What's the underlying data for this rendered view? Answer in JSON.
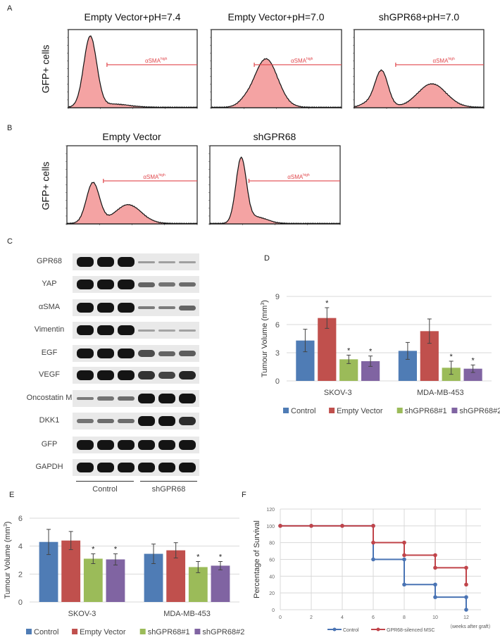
{
  "panels": {
    "A": "A",
    "B": "B",
    "C": "C",
    "D": "D",
    "E": "E",
    "F": "F"
  },
  "flow": {
    "ylabel": "GFP+ cells",
    "gate_label": "αSMA",
    "gate_sup": "high",
    "gate_color": "#e0474c",
    "fill_color": "#f4a3a3",
    "A_titles": [
      "Empty Vector+pH=7.4",
      "Empty Vector+pH=7.0",
      "shGPR68+pH=7.0"
    ],
    "B_titles": [
      "Empty Vector",
      "shGPR68"
    ]
  },
  "blot": {
    "proteins": [
      "GPR68",
      "YAP",
      "αSMA",
      "Vimentin",
      "EGF",
      "VEGF",
      "Oncostatin M",
      "DKK1",
      "GFP",
      "GAPDH"
    ],
    "groups": [
      "Control",
      "shGPR68"
    ]
  },
  "chart_data": [
    {
      "id": "D",
      "type": "bar",
      "ylabel": "Tumour Volume (mm",
      "ylabel_sup": "3",
      "ylabel_end": ")",
      "categories": [
        "SKOV-3",
        "MDA-MB-453"
      ],
      "ylim": [
        0,
        9
      ],
      "yticks": [
        0,
        3,
        6,
        9
      ],
      "grid": true,
      "legend": "bottom",
      "series": [
        {
          "name": "Control",
          "color": "#4f7cb5",
          "values": [
            4.3,
            3.2
          ],
          "errors": [
            1.2,
            0.9
          ],
          "sig": [
            false,
            false
          ]
        },
        {
          "name": "Empty Vector",
          "color": "#c0504d",
          "values": [
            6.7,
            5.3
          ],
          "errors": [
            1.1,
            1.3
          ],
          "sig": [
            true,
            false
          ]
        },
        {
          "name": "shGPR68#1",
          "color": "#9bbb59",
          "values": [
            2.3,
            1.4
          ],
          "errors": [
            0.45,
            0.7
          ],
          "sig": [
            true,
            true
          ]
        },
        {
          "name": "shGPR68#2",
          "color": "#8064a2",
          "values": [
            2.1,
            1.3
          ],
          "errors": [
            0.55,
            0.4
          ],
          "sig": [
            true,
            true
          ]
        }
      ],
      "sig_mark": "*"
    },
    {
      "id": "E",
      "type": "bar",
      "ylabel": "Tumour Volume (mm",
      "ylabel_sup": "3",
      "ylabel_end": ")",
      "categories": [
        "SKOV-3",
        "MDA-MB-453"
      ],
      "ylim": [
        0,
        6
      ],
      "yticks": [
        0,
        2,
        4,
        6
      ],
      "grid": true,
      "legend": "bottom",
      "series": [
        {
          "name": "Control",
          "color": "#4f7cb5",
          "values": [
            4.3,
            3.45
          ],
          "errors": [
            0.9,
            0.7
          ],
          "sig": [
            false,
            false
          ]
        },
        {
          "name": "Empty Vector",
          "color": "#c0504d",
          "values": [
            4.4,
            3.7
          ],
          "errors": [
            0.65,
            0.55
          ],
          "sig": [
            false,
            false
          ]
        },
        {
          "name": "shGPR68#1",
          "color": "#9bbb59",
          "values": [
            3.1,
            2.5
          ],
          "errors": [
            0.35,
            0.4
          ],
          "sig": [
            true,
            true
          ]
        },
        {
          "name": "shGPR68#2",
          "color": "#8064a2",
          "values": [
            3.05,
            2.6
          ],
          "errors": [
            0.4,
            0.3
          ],
          "sig": [
            true,
            true
          ]
        }
      ],
      "sig_mark": "*"
    },
    {
      "id": "F",
      "type": "line",
      "ylabel": "Percentage of Survival",
      "xlabel": "（weeks after graft）",
      "xlim": [
        0,
        12
      ],
      "xticks": [
        0,
        2,
        4,
        6,
        8,
        10,
        12
      ],
      "ylim": [
        0,
        120
      ],
      "yticks": [
        0,
        20,
        40,
        60,
        80,
        100,
        120
      ],
      "grid": true,
      "legend": "bottom",
      "series": [
        {
          "name": "Control",
          "color": "#4a74b4",
          "x": [
            0,
            2,
            4,
            6,
            6,
            8,
            8,
            10,
            10,
            12,
            12
          ],
          "y": [
            100,
            100,
            100,
            100,
            60,
            60,
            30,
            30,
            15,
            15,
            0
          ]
        },
        {
          "name": "GPR68-silenced MSC",
          "color": "#c0444a",
          "x": [
            0,
            2,
            4,
            6,
            6,
            8,
            8,
            10,
            10,
            12,
            12
          ],
          "y": [
            100,
            100,
            100,
            100,
            80,
            80,
            65,
            65,
            50,
            50,
            30
          ]
        }
      ]
    }
  ]
}
